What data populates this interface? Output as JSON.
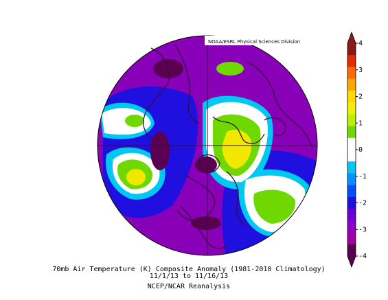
{
  "credit": "NOAA/ESRL Physical Sciences Division",
  "caption": {
    "line1": "70mb Air Temperature (K) Composite Anomaly (1981-2010 Climatology)",
    "line2": "11/1/13  to 11/16/13",
    "line3": "NCEP/NCAR Reanalysis"
  },
  "colorbar": {
    "ticks": [
      "4",
      "3",
      "2",
      "1",
      "0",
      "-1",
      "-2",
      "-3",
      "-4"
    ],
    "colors": [
      "#8b1a1a",
      "#e52c00",
      "#ff6a00",
      "#ffa500",
      "#ffd800",
      "#f0f000",
      "#b8f000",
      "#6ed800",
      "#ffffff",
      "#ffffff",
      "#00c8f0",
      "#0090ff",
      "#0050ff",
      "#2010e0",
      "#6a00d8",
      "#9000c8",
      "#a000a0",
      "#5a0050"
    ]
  },
  "colors": {
    "outline": "#3a0a3a",
    "deep_purple": "#5a0050",
    "purple": "#8800b8",
    "violet": "#6a00d8",
    "blue": "#2010e0",
    "mid_blue": "#1a66ff",
    "light_blue": "#00c8f0",
    "white": "#ffffff",
    "green": "#6ed800",
    "yellow_green": "#c8f000",
    "yellow": "#f0e800"
  }
}
